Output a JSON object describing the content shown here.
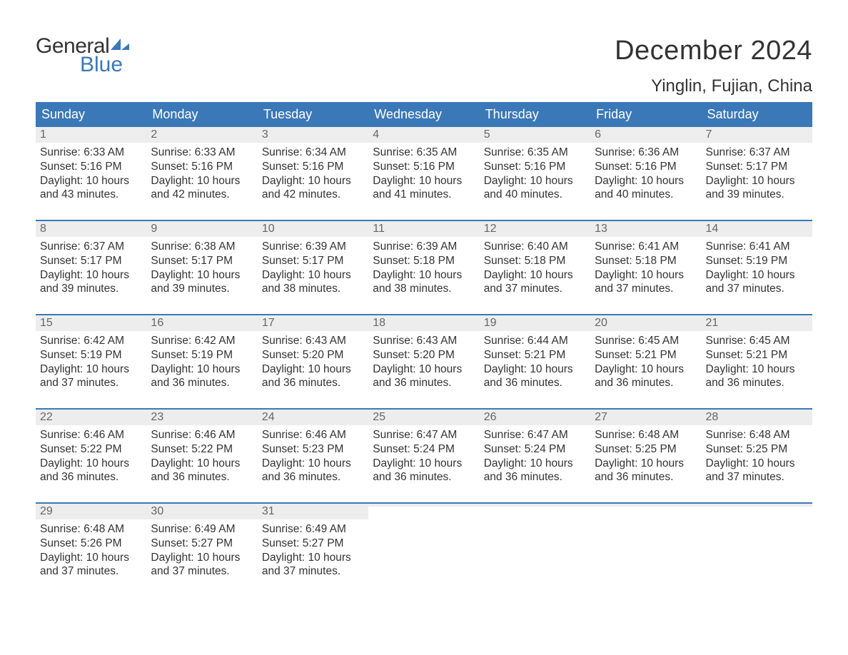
{
  "brand": {
    "line1": "General",
    "line2": "Blue",
    "accent_color": "#3b78b8"
  },
  "title": "December 2024",
  "location": "Yinglin, Fujian, China",
  "colors": {
    "header_bg": "#3b78b8",
    "header_text": "#ffffff",
    "daynum_bg": "#ededed",
    "daynum_text": "#666666",
    "body_text": "#333333",
    "page_bg": "#ffffff",
    "week_divider": "#3b78b8"
  },
  "typography": {
    "title_fontsize": 38,
    "location_fontsize": 24,
    "header_fontsize": 18,
    "daynum_fontsize": 16,
    "body_fontsize": 15.5,
    "font_family": "Arial"
  },
  "day_headers": [
    "Sunday",
    "Monday",
    "Tuesday",
    "Wednesday",
    "Thursday",
    "Friday",
    "Saturday"
  ],
  "labels": {
    "sunrise": "Sunrise:",
    "sunset": "Sunset:",
    "daylight": "Daylight:"
  },
  "weeks": [
    [
      {
        "n": "1",
        "sunrise": "6:33 AM",
        "sunset": "5:16 PM",
        "daylight": "10 hours and 43 minutes."
      },
      {
        "n": "2",
        "sunrise": "6:33 AM",
        "sunset": "5:16 PM",
        "daylight": "10 hours and 42 minutes."
      },
      {
        "n": "3",
        "sunrise": "6:34 AM",
        "sunset": "5:16 PM",
        "daylight": "10 hours and 42 minutes."
      },
      {
        "n": "4",
        "sunrise": "6:35 AM",
        "sunset": "5:16 PM",
        "daylight": "10 hours and 41 minutes."
      },
      {
        "n": "5",
        "sunrise": "6:35 AM",
        "sunset": "5:16 PM",
        "daylight": "10 hours and 40 minutes."
      },
      {
        "n": "6",
        "sunrise": "6:36 AM",
        "sunset": "5:16 PM",
        "daylight": "10 hours and 40 minutes."
      },
      {
        "n": "7",
        "sunrise": "6:37 AM",
        "sunset": "5:17 PM",
        "daylight": "10 hours and 39 minutes."
      }
    ],
    [
      {
        "n": "8",
        "sunrise": "6:37 AM",
        "sunset": "5:17 PM",
        "daylight": "10 hours and 39 minutes."
      },
      {
        "n": "9",
        "sunrise": "6:38 AM",
        "sunset": "5:17 PM",
        "daylight": "10 hours and 39 minutes."
      },
      {
        "n": "10",
        "sunrise": "6:39 AM",
        "sunset": "5:17 PM",
        "daylight": "10 hours and 38 minutes."
      },
      {
        "n": "11",
        "sunrise": "6:39 AM",
        "sunset": "5:18 PM",
        "daylight": "10 hours and 38 minutes."
      },
      {
        "n": "12",
        "sunrise": "6:40 AM",
        "sunset": "5:18 PM",
        "daylight": "10 hours and 37 minutes."
      },
      {
        "n": "13",
        "sunrise": "6:41 AM",
        "sunset": "5:18 PM",
        "daylight": "10 hours and 37 minutes."
      },
      {
        "n": "14",
        "sunrise": "6:41 AM",
        "sunset": "5:19 PM",
        "daylight": "10 hours and 37 minutes."
      }
    ],
    [
      {
        "n": "15",
        "sunrise": "6:42 AM",
        "sunset": "5:19 PM",
        "daylight": "10 hours and 37 minutes."
      },
      {
        "n": "16",
        "sunrise": "6:42 AM",
        "sunset": "5:19 PM",
        "daylight": "10 hours and 36 minutes."
      },
      {
        "n": "17",
        "sunrise": "6:43 AM",
        "sunset": "5:20 PM",
        "daylight": "10 hours and 36 minutes."
      },
      {
        "n": "18",
        "sunrise": "6:43 AM",
        "sunset": "5:20 PM",
        "daylight": "10 hours and 36 minutes."
      },
      {
        "n": "19",
        "sunrise": "6:44 AM",
        "sunset": "5:21 PM",
        "daylight": "10 hours and 36 minutes."
      },
      {
        "n": "20",
        "sunrise": "6:45 AM",
        "sunset": "5:21 PM",
        "daylight": "10 hours and 36 minutes."
      },
      {
        "n": "21",
        "sunrise": "6:45 AM",
        "sunset": "5:21 PM",
        "daylight": "10 hours and 36 minutes."
      }
    ],
    [
      {
        "n": "22",
        "sunrise": "6:46 AM",
        "sunset": "5:22 PM",
        "daylight": "10 hours and 36 minutes."
      },
      {
        "n": "23",
        "sunrise": "6:46 AM",
        "sunset": "5:22 PM",
        "daylight": "10 hours and 36 minutes."
      },
      {
        "n": "24",
        "sunrise": "6:46 AM",
        "sunset": "5:23 PM",
        "daylight": "10 hours and 36 minutes."
      },
      {
        "n": "25",
        "sunrise": "6:47 AM",
        "sunset": "5:24 PM",
        "daylight": "10 hours and 36 minutes."
      },
      {
        "n": "26",
        "sunrise": "6:47 AM",
        "sunset": "5:24 PM",
        "daylight": "10 hours and 36 minutes."
      },
      {
        "n": "27",
        "sunrise": "6:48 AM",
        "sunset": "5:25 PM",
        "daylight": "10 hours and 36 minutes."
      },
      {
        "n": "28",
        "sunrise": "6:48 AM",
        "sunset": "5:25 PM",
        "daylight": "10 hours and 37 minutes."
      }
    ],
    [
      {
        "n": "29",
        "sunrise": "6:48 AM",
        "sunset": "5:26 PM",
        "daylight": "10 hours and 37 minutes."
      },
      {
        "n": "30",
        "sunrise": "6:49 AM",
        "sunset": "5:27 PM",
        "daylight": "10 hours and 37 minutes."
      },
      {
        "n": "31",
        "sunrise": "6:49 AM",
        "sunset": "5:27 PM",
        "daylight": "10 hours and 37 minutes."
      },
      {
        "empty": true
      },
      {
        "empty": true
      },
      {
        "empty": true
      },
      {
        "empty": true
      }
    ]
  ]
}
